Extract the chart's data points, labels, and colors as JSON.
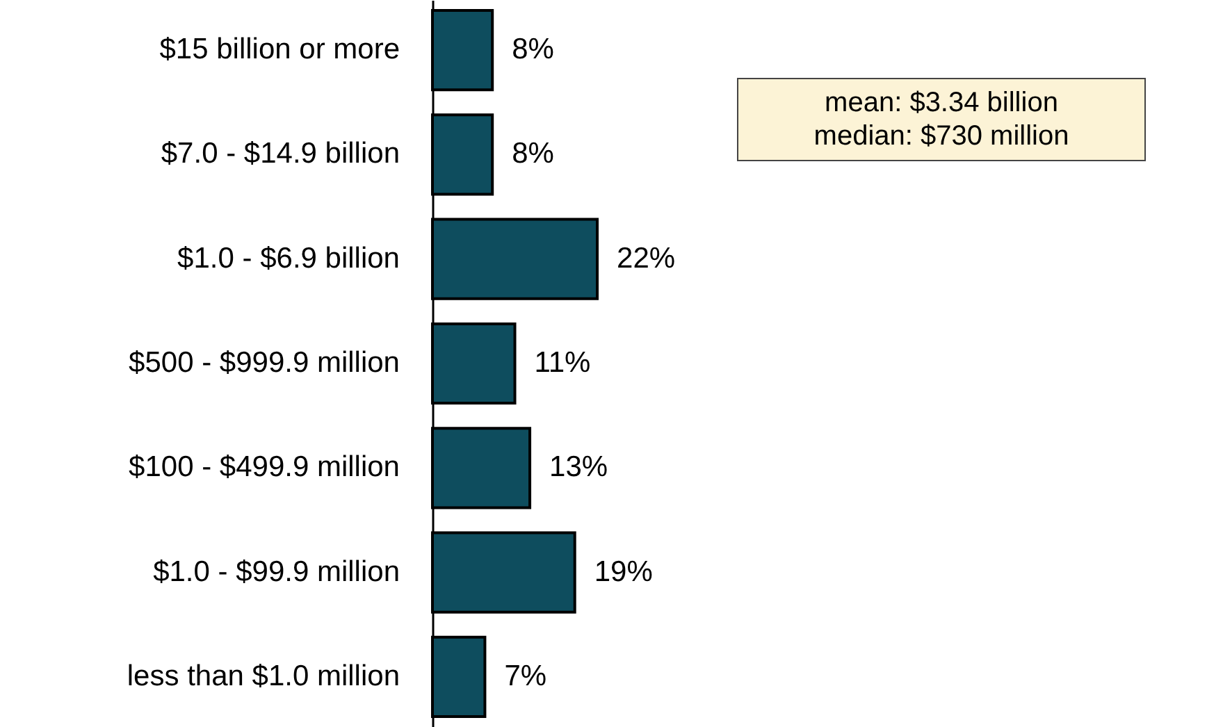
{
  "chart_data": {
    "type": "bar",
    "orientation": "horizontal",
    "categories": [
      "$15 billion or more",
      "$7.0 - $14.9 billion",
      "$1.0 - $6.9 billion",
      "$500 - $999.9 million",
      "$100 - $499.9 million",
      "$1.0 - $99.9 million",
      "less than $1.0 million"
    ],
    "values": [
      8,
      8,
      22,
      11,
      13,
      19,
      7
    ],
    "value_labels": [
      "8%",
      "8%",
      "22%",
      "11%",
      "13%",
      "19%",
      "7%"
    ],
    "color": "#0e4d5e",
    "annotations": [
      "mean: $3.34 billion",
      "median: $730 million"
    ]
  }
}
